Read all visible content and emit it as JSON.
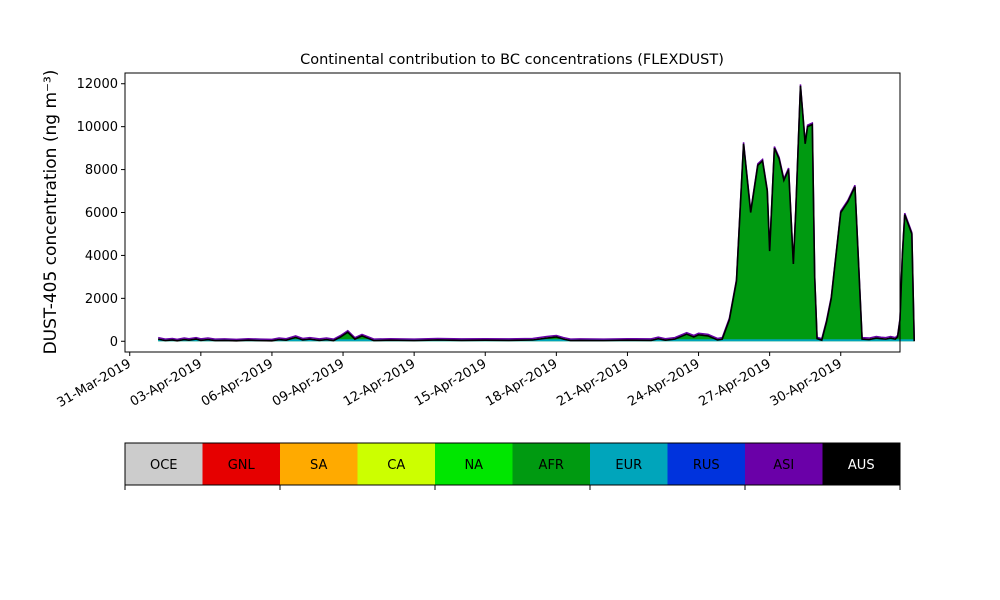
{
  "chart_data": {
    "type": "area",
    "title": "Continental contribution to BC concentrations (FLEXDUST)",
    "ylabel": "DUST-405 concentration (ng m⁻³)",
    "xlabel": "",
    "ylim": [
      -500,
      12500
    ],
    "y_ticks": [
      0,
      2000,
      4000,
      6000,
      8000,
      10000,
      12000
    ],
    "x_ticks": [
      "31-Mar-2019",
      "03-Apr-2019",
      "06-Apr-2019",
      "09-Apr-2019",
      "12-Apr-2019",
      "15-Apr-2019",
      "18-Apr-2019",
      "21-Apr-2019",
      "24-Apr-2019",
      "27-Apr-2019",
      "30-Apr-2019"
    ],
    "xlim_days": [
      30.8,
      63.5
    ],
    "grid": false,
    "stacked": true,
    "legend_placement": "colorbar-below",
    "categories": [
      "OCE",
      "GNL",
      "SA",
      "CA",
      "NA",
      "AFR",
      "EUR",
      "RUS",
      "ASI",
      "AUS"
    ],
    "colors": [
      "#cccccc",
      "#e60000",
      "#ffaa00",
      "#ccff00",
      "#00e600",
      "#009a11",
      "#00a5bb",
      "#0033dd",
      "#6a00a8",
      "#000000"
    ],
    "total_series": {
      "name": "",
      "day_of_month_march_offset": [
        32.2,
        32.5,
        32.8,
        33.0,
        33.3,
        33.5,
        33.8,
        34.0,
        34.3,
        34.6,
        35.0,
        35.5,
        36.0,
        36.5,
        37.0,
        37.3,
        37.6,
        38.0,
        38.3,
        38.6,
        39.0,
        39.3,
        39.6,
        39.9,
        40.2,
        40.5,
        40.8,
        41.3,
        42.0,
        43.0,
        44.0,
        45.0,
        46.0,
        47.0,
        48.0,
        48.6,
        49.0,
        49.3,
        49.6,
        50.0,
        51.0,
        52.0,
        53.0,
        53.3,
        53.6,
        54.0,
        54.5,
        54.8,
        55.0,
        55.4,
        55.8,
        56.0,
        56.3,
        56.6,
        56.9,
        57.2,
        57.5,
        57.7,
        57.9,
        58.0,
        58.2,
        58.4,
        58.6,
        58.8,
        59.0,
        59.1,
        59.3,
        59.5,
        59.6,
        59.8,
        59.9,
        60.0,
        60.2,
        60.4,
        60.6,
        60.8,
        61.0,
        61.3,
        61.6,
        61.9,
        62.2,
        62.5,
        62.7,
        62.9,
        63.1,
        63.3,
        63.4,
        63.5,
        63.6,
        63.7,
        63.8,
        63.9,
        64.0,
        64.1
      ],
      "values": [
        100,
        30,
        60,
        20,
        80,
        50,
        100,
        40,
        80,
        30,
        40,
        20,
        50,
        30,
        20,
        80,
        50,
        180,
        60,
        100,
        40,
        80,
        30,
        200,
        420,
        100,
        250,
        30,
        50,
        30,
        60,
        40,
        50,
        40,
        60,
        150,
        200,
        100,
        30,
        40,
        30,
        50,
        40,
        120,
        50,
        100,
        330,
        200,
        300,
        250,
        60,
        100,
        1000,
        2800,
        9200,
        6000,
        8200,
        8400,
        7000,
        4200,
        9000,
        8500,
        7500,
        8000,
        3600,
        6000,
        11900,
        9200,
        10000,
        10100,
        3000,
        120,
        50,
        900,
        2000,
        4000,
        6000,
        6500,
        7200,
        100,
        80,
        150,
        120,
        100,
        150,
        100,
        200,
        1000,
        4000,
        5900,
        5600,
        5300,
        5000,
        0
      ]
    },
    "notes_visible": "Stack dominated by AFR; thin EUR/ASI layers near baseline; AUS outline"
  }
}
